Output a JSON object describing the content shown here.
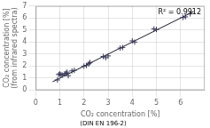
{
  "chart_data": {
    "type": "scatter",
    "annotation": "R² = 0.9912",
    "xlabel": "CO₂ concentration [%]",
    "subtitle": "(DIN EN 196-2)",
    "ylabel": [
      "CO₂ concentration [%]",
      "(from infrared spectra)"
    ],
    "series": [
      {
        "type": "scatter",
        "marker": "+",
        "color": "#3a3a5a",
        "x": [
          0.9,
          0.95,
          1.0,
          1.05,
          1.1,
          1.2,
          1.25,
          1.3,
          1.35,
          1.5,
          1.6,
          2.0,
          2.1,
          2.2,
          2.25,
          2.8,
          2.9,
          3.0,
          3.5,
          3.6,
          4.0,
          4.1,
          4.9,
          5.0,
          6.1,
          6.2,
          6.4
        ],
        "values": [
          0.85,
          1.3,
          1.35,
          1.28,
          1.25,
          1.35,
          1.4,
          1.5,
          1.2,
          1.6,
          1.65,
          2.0,
          2.05,
          2.2,
          2.3,
          2.8,
          2.7,
          2.85,
          3.5,
          3.55,
          4.1,
          4.0,
          5.1,
          5.05,
          6.05,
          6.1,
          6.35
        ]
      },
      {
        "type": "line",
        "line_style": "solid",
        "color": "#1a1a2a",
        "x": [
          0.7,
          6.55
        ],
        "values": [
          0.7,
          6.55
        ]
      }
    ],
    "xlim": [
      0,
      7
    ],
    "ylim": [
      0,
      7
    ],
    "xticks": [
      0,
      1,
      2,
      3,
      4,
      5,
      6
    ],
    "yticks": [
      0,
      1,
      2,
      3,
      4,
      5,
      6,
      7
    ],
    "grid": true
  }
}
